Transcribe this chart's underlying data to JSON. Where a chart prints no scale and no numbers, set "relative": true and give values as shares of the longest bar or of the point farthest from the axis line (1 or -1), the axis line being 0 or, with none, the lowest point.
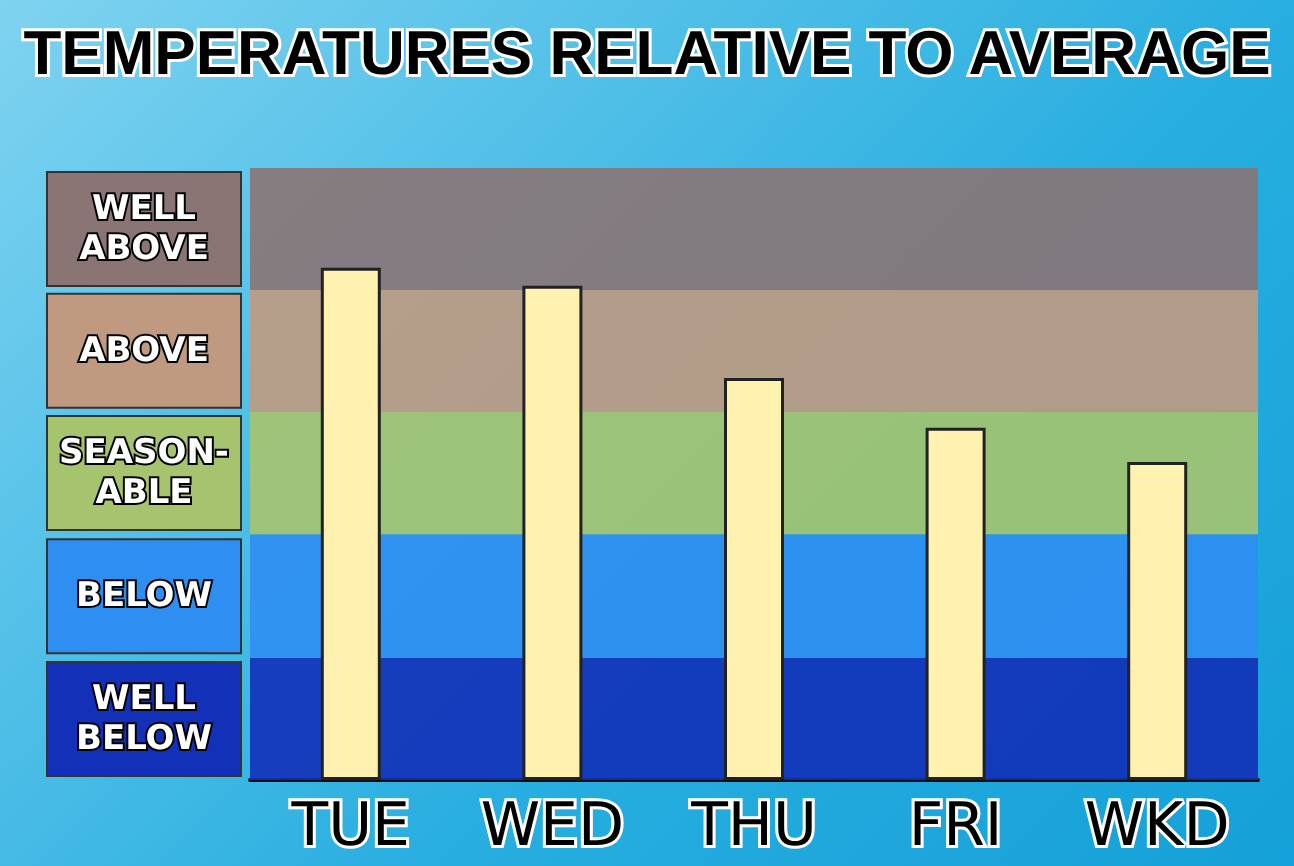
{
  "chart_data": {
    "type": "bar",
    "title": "TEMPERATURES RELATIVE TO AVERAGE",
    "categories": [
      "TUE",
      "WED",
      "THU",
      "FRI",
      "WKD"
    ],
    "values": [
      1,
      0.965,
      0.785,
      0.688,
      0.621
    ],
    "color": "#fff2b0",
    "relative": true,
    "grid": false,
    "bands": [
      {
        "axis": "y",
        "from": 0,
        "to": 0.238,
        "label": "WELL BELOW",
        "color": "#1230b8"
      },
      {
        "axis": "y",
        "from": 0.238,
        "to": 0.48,
        "label": "BELOW",
        "color": "#2f8ef2"
      },
      {
        "axis": "y",
        "from": 0.48,
        "to": 0.719,
        "label": "SEASON-ABLE",
        "color": "#a6c46e"
      },
      {
        "axis": "y",
        "from": 0.719,
        "to": 0.957,
        "label": "ABOVE",
        "color": "#c09a80"
      },
      {
        "axis": "y",
        "from": 0.957,
        "to": 1.195,
        "label": "WELL ABOVE",
        "color": "#8a7474"
      }
    ]
  }
}
